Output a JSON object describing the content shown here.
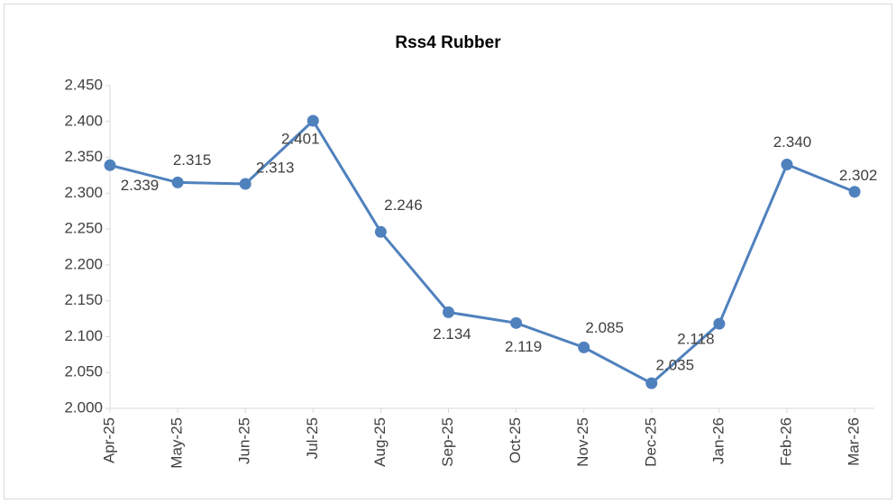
{
  "chart_data": {
    "type": "line",
    "title": "Rss4 Rubber",
    "categories": [
      "Apr-25",
      "May-25",
      "Jun-25",
      "Jul-25",
      "Aug-25",
      "Sep-25",
      "Oct-25",
      "Nov-25",
      "Dec-25",
      "Jan-26",
      "Feb-26",
      "Mar-26"
    ],
    "series": [
      {
        "name": "Rss4 Rubber",
        "color": "#4f81bd",
        "values": [
          2.339,
          2.315,
          2.313,
          2.401,
          2.246,
          2.134,
          2.119,
          2.085,
          2.035,
          2.118,
          2.34,
          2.302
        ],
        "value_labels": [
          "2.339",
          "2.315",
          "2.313",
          "2.401",
          "2.246",
          "2.134",
          "2.119",
          "2.085",
          "2.035",
          "2.118",
          "2.340",
          "2.302"
        ]
      }
    ],
    "ylim": [
      2,
      2.45
    ],
    "yticks": [
      {
        "value": 2,
        "label": "2.000"
      },
      {
        "value": 2.05,
        "label": "2.050"
      },
      {
        "value": 2.1,
        "label": "2.100"
      },
      {
        "value": 2.15,
        "label": "2.150"
      },
      {
        "value": 2.2,
        "label": "2.200"
      },
      {
        "value": 2.25,
        "label": "2.250"
      },
      {
        "value": 2.3,
        "label": "2.300"
      },
      {
        "value": 2.35,
        "label": "2.350"
      },
      {
        "value": 2.4,
        "label": "2.400"
      },
      {
        "value": 2.45,
        "label": "2.450"
      }
    ]
  }
}
